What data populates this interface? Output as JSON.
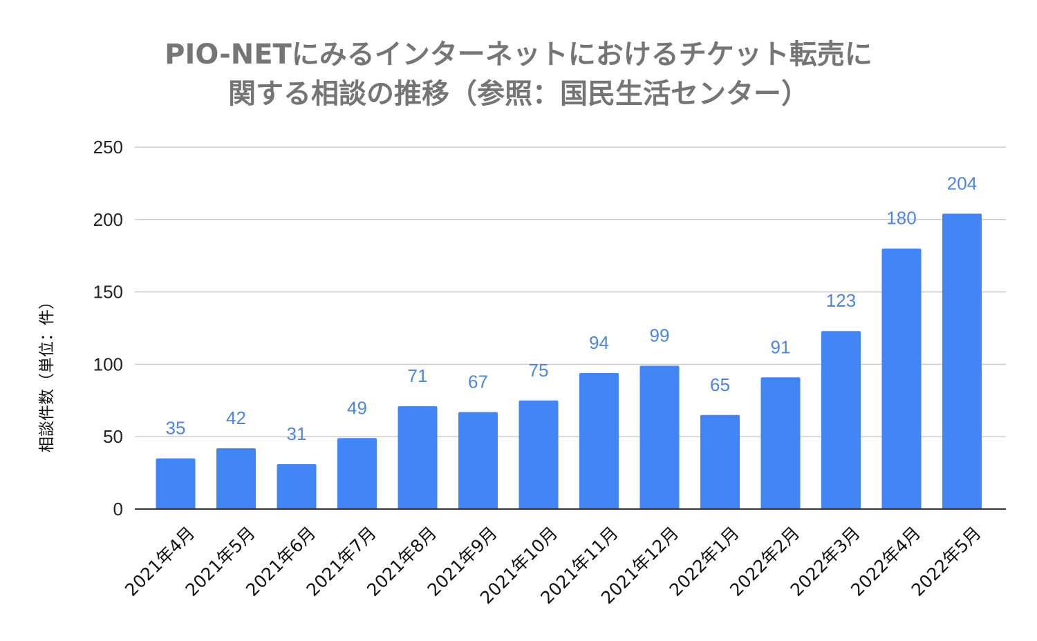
{
  "chart_data": {
    "type": "bar",
    "title_lines": [
      "PIO-NETにみるインターネットにおけるチケット転売に",
      "関する相談の推移（参照：国民生活センター）"
    ],
    "title": "PIO-NETにみるインターネットにおけるチケット転売に関する相談の推移（参照：国民生活センター）",
    "xlabel": "",
    "ylabel": "相談件数（単位：件）",
    "ylim": [
      0,
      250
    ],
    "yticks": [
      0,
      50,
      100,
      150,
      200,
      250
    ],
    "grid": true,
    "categories": [
      "2021年4月",
      "2021年5月",
      "2021年6月",
      "2021年7月",
      "2021年8月",
      "2021年9月",
      "2021年10月",
      "2021年11月",
      "2021年12月",
      "2022年1月",
      "2022年2月",
      "2022年3月",
      "2022年4月",
      "2022年5月"
    ],
    "values": [
      35,
      42,
      31,
      49,
      71,
      67,
      75,
      94,
      99,
      65,
      91,
      123,
      180,
      204
    ],
    "bar_color": "#4285f4",
    "label_color": "#4a86e8"
  }
}
